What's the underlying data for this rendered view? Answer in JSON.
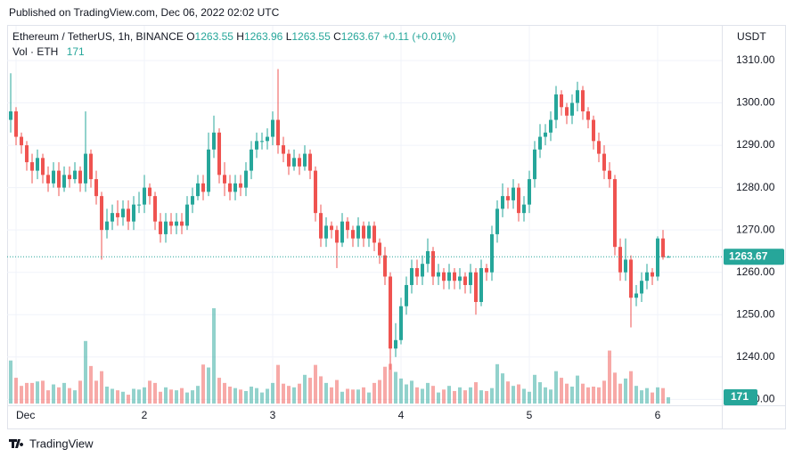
{
  "header": {
    "published": "Published on TradingView.com, Dec 06, 2022 02:02 UTC",
    "footer": "TradingView"
  },
  "chart_data": {
    "type": "candlestick",
    "legend": {
      "symbol": "Ethereum / TetherUS, 1h, BINANCE",
      "o_label": "O",
      "h_label": "H",
      "l_label": "L",
      "c_label": "C",
      "change": "+0.11 (+0.01%)",
      "volume_label": "Vol · ETH"
    },
    "y_axis_unit": "USDT",
    "up_color": "#26a69a",
    "down_color": "#ef5350",
    "grid": true,
    "ylim": [
      1228.6,
      1318.2
    ],
    "yticks": [
      {
        "value": 1230,
        "label": "1230.00"
      },
      {
        "value": 1240,
        "label": "1240.00"
      },
      {
        "value": 1250,
        "label": "1250.00"
      },
      {
        "value": 1260,
        "label": "1260.00"
      },
      {
        "value": 1270,
        "label": "1270.00"
      },
      {
        "value": 1280,
        "label": "1280.00"
      },
      {
        "value": 1290,
        "label": "1290.00"
      },
      {
        "value": 1300,
        "label": "1300.00"
      },
      {
        "value": 1310,
        "label": "1310.00"
      }
    ],
    "xlim": [
      -0.67,
      133
    ],
    "xticks": [
      {
        "value": 1,
        "label": "Dec"
      },
      {
        "value": 25,
        "label": "2"
      },
      {
        "value": 49,
        "label": "3"
      },
      {
        "value": 73,
        "label": "4"
      },
      {
        "value": 97,
        "label": "5"
      },
      {
        "value": 121,
        "label": "6"
      }
    ],
    "volume_ylim": [
      0,
      5400
    ],
    "open": [
      1296,
      1298,
      1292,
      1290,
      1286,
      1284,
      1287,
      1283,
      1281,
      1284,
      1280,
      1283,
      1282,
      1284,
      1281,
      1288,
      1282,
      1278,
      1270,
      1272,
      1274,
      1273,
      1275,
      1272,
      1276,
      1276,
      1280,
      1278,
      1272,
      1269,
      1272,
      1271,
      1272,
      1271,
      1276,
      1278,
      1281,
      1279,
      1289,
      1293,
      1283,
      1281,
      1279,
      1281,
      1280,
      1284,
      1289,
      1291,
      1291,
      1292,
      1296,
      1290,
      1288,
      1285,
      1287,
      1285,
      1288,
      1284,
      1274,
      1268,
      1271,
      1270,
      1267,
      1272,
      1270,
      1268,
      1271,
      1268,
      1271,
      1267,
      1264,
      1259,
      1242,
      1244,
      1252,
      1257,
      1261,
      1259,
      1262,
      1265,
      1259,
      1260,
      1258,
      1260,
      1258,
      1259,
      1257,
      1260,
      1253,
      1261,
      1260,
      1269,
      1275,
      1278,
      1277,
      1280,
      1274,
      1276,
      1282,
      1289,
      1292,
      1293,
      1296,
      1302,
      1299,
      1297,
      1300,
      1303,
      1298,
      1296,
      1291,
      1288,
      1284,
      1282,
      1266,
      1260,
      1263,
      1254,
      1255,
      1258,
      1260,
      1259,
      1268,
      1263.55
    ],
    "high": [
      1307,
      1299,
      1293,
      1291,
      1288,
      1289,
      1288,
      1285,
      1286,
      1286,
      1285,
      1285,
      1286,
      1285,
      1298,
      1289,
      1284,
      1279,
      1275,
      1276,
      1277,
      1277,
      1277,
      1278,
      1279,
      1283,
      1281,
      1279,
      1274,
      1274,
      1274,
      1274,
      1274,
      1278,
      1280,
      1283,
      1283,
      1293,
      1297,
      1294,
      1286,
      1283,
      1283,
      1283,
      1286,
      1291,
      1293,
      1293,
      1294,
      1298,
      1308,
      1292,
      1289,
      1289,
      1288,
      1290,
      1289,
      1285,
      1276,
      1273,
      1272,
      1271,
      1274,
      1273,
      1271,
      1273,
      1272,
      1272,
      1272,
      1268,
      1266,
      1260,
      1248,
      1254,
      1259,
      1263,
      1263,
      1264,
      1268,
      1266,
      1262,
      1261,
      1262,
      1261,
      1261,
      1260,
      1262,
      1261,
      1263,
      1262,
      1271,
      1277,
      1281,
      1280,
      1282,
      1281,
      1278,
      1284,
      1291,
      1295,
      1295,
      1298,
      1304,
      1303,
      1300,
      1302,
      1305,
      1304,
      1299,
      1297,
      1293,
      1290,
      1286,
      1283,
      1268,
      1268,
      1264,
      1257,
      1260,
      1262,
      1261,
      1268.5,
      1270,
      1263.96
    ],
    "low": [
      1293,
      1290,
      1288,
      1284,
      1281,
      1282,
      1281,
      1279,
      1280,
      1278,
      1279,
      1280,
      1281,
      1279,
      1279,
      1280,
      1276,
      1263,
      1268,
      1270,
      1271,
      1271,
      1270,
      1270,
      1274,
      1274,
      1276,
      1270,
      1267,
      1267,
      1269,
      1269,
      1269,
      1270,
      1274,
      1277,
      1277,
      1278,
      1287,
      1281,
      1278,
      1277,
      1277,
      1278,
      1278,
      1282,
      1287,
      1289,
      1289,
      1290,
      1288,
      1286,
      1283,
      1284,
      1283,
      1284,
      1282,
      1272,
      1266,
      1266,
      1268,
      1261,
      1266,
      1268,
      1266,
      1266,
      1266,
      1266,
      1265,
      1262,
      1257,
      1237,
      1240,
      1243,
      1250,
      1255,
      1257,
      1257,
      1260,
      1257,
      1257,
      1256,
      1256,
      1256,
      1256,
      1255,
      1255,
      1250,
      1252,
      1258,
      1258,
      1267,
      1273,
      1275,
      1275,
      1272,
      1272,
      1274,
      1280,
      1287,
      1290,
      1291,
      1294,
      1297,
      1295,
      1295,
      1298,
      1296,
      1294,
      1289,
      1286,
      1282,
      1280,
      1264,
      1258,
      1258,
      1247,
      1252,
      1253,
      1256,
      1257,
      1258,
      1263,
      1263.55
    ],
    "close": [
      1298,
      1292,
      1290,
      1286,
      1284,
      1287,
      1283,
      1281,
      1284,
      1280,
      1283,
      1282,
      1284,
      1281,
      1288,
      1282,
      1278,
      1270,
      1272,
      1274,
      1273,
      1275,
      1272,
      1276,
      1276,
      1280,
      1278,
      1272,
      1269,
      1272,
      1271,
      1272,
      1271,
      1276,
      1278,
      1281,
      1279,
      1289,
      1293,
      1283,
      1281,
      1279,
      1281,
      1280,
      1284,
      1289,
      1291,
      1291,
      1292,
      1296,
      1290,
      1288,
      1285,
      1287,
      1285,
      1288,
      1284,
      1274,
      1268,
      1271,
      1270,
      1267,
      1272,
      1270,
      1268,
      1271,
      1268,
      1271,
      1267,
      1264,
      1259,
      1242,
      1244,
      1252,
      1257,
      1261,
      1259,
      1262,
      1265,
      1259,
      1260,
      1258,
      1260,
      1258,
      1259,
      1257,
      1260,
      1253,
      1261,
      1260,
      1269,
      1275,
      1278,
      1277,
      1280,
      1274,
      1276,
      1282,
      1289,
      1292,
      1293,
      1296,
      1302,
      1299,
      1297,
      1300,
      1303,
      1298,
      1296,
      1291,
      1288,
      1284,
      1282,
      1266,
      1260,
      1263,
      1254,
      1255,
      1258,
      1260,
      1259,
      1268,
      1263.55,
      1263.67
    ],
    "volume": [
      1170,
      700,
      480,
      560,
      560,
      600,
      620,
      360,
      520,
      440,
      560,
      420,
      360,
      620,
      1700,
      1020,
      620,
      880,
      460,
      400,
      360,
      320,
      240,
      400,
      380,
      440,
      620,
      560,
      320,
      440,
      380,
      360,
      420,
      300,
      360,
      480,
      1060,
      980,
      2590,
      700,
      560,
      460,
      420,
      380,
      340,
      460,
      420,
      300,
      400,
      560,
      1050,
      540,
      480,
      440,
      540,
      780,
      700,
      1050,
      740,
      560,
      440,
      640,
      320,
      400,
      380,
      380,
      440,
      300,
      560,
      640,
      1000,
      1080,
      860,
      680,
      520,
      620,
      440,
      400,
      560,
      480,
      300,
      380,
      480,
      340,
      440,
      360,
      440,
      580,
      360,
      340,
      420,
      1070,
      820,
      600,
      480,
      520,
      400,
      320,
      780,
      580,
      440,
      380,
      880,
      700,
      540,
      460,
      760,
      540,
      440,
      460,
      440,
      620,
      1440,
      840,
      540,
      680,
      880,
      480,
      360,
      420,
      300,
      440,
      420,
      171
    ]
  }
}
